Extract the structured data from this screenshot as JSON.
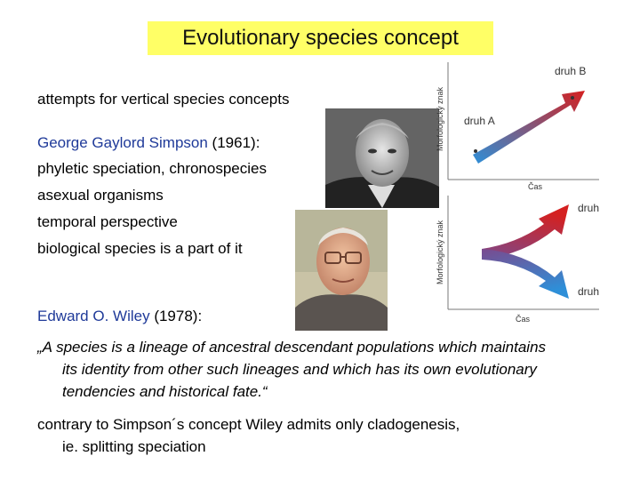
{
  "title": "Evolutionary species concept",
  "lines": {
    "intro": "attempts for vertical species concepts",
    "simpson_name": "George Gaylord Simpson",
    "simpson_year": " (1961):",
    "l2": "phyletic speciation, chronospecies",
    "l3": "asexual organisms",
    "l4": "temporal perspective",
    "l5": "biological species is a part of it",
    "wiley_name": "Edward O. Wiley",
    "wiley_year": " (1978):"
  },
  "quote": {
    "line1": "„A species is a lineage of ancestral descendant populations which maintains",
    "line2": "its identity from other such lineages and which has its own evolutionary",
    "line3": "tendencies and historical fate.“"
  },
  "conclusion": {
    "line1": "contrary to Simpson´s concept Wiley admits only cladogenesis,",
    "line2": "ie. splitting speciation"
  },
  "diagram_top": {
    "ylabel": "Morfologický znak",
    "xlabel": "Čas",
    "label_a": "druh A",
    "label_b": "druh B"
  },
  "diagram_bottom": {
    "ylabel": "Morfologický znak",
    "xlabel": "Čas",
    "label_a": "druh A",
    "label_b": "druh B"
  },
  "colors": {
    "title_bg": "#ffff66",
    "name_blue": "#1f3a99",
    "arrow_red": "#d42020",
    "arrow_blue": "#2e8fd8"
  }
}
